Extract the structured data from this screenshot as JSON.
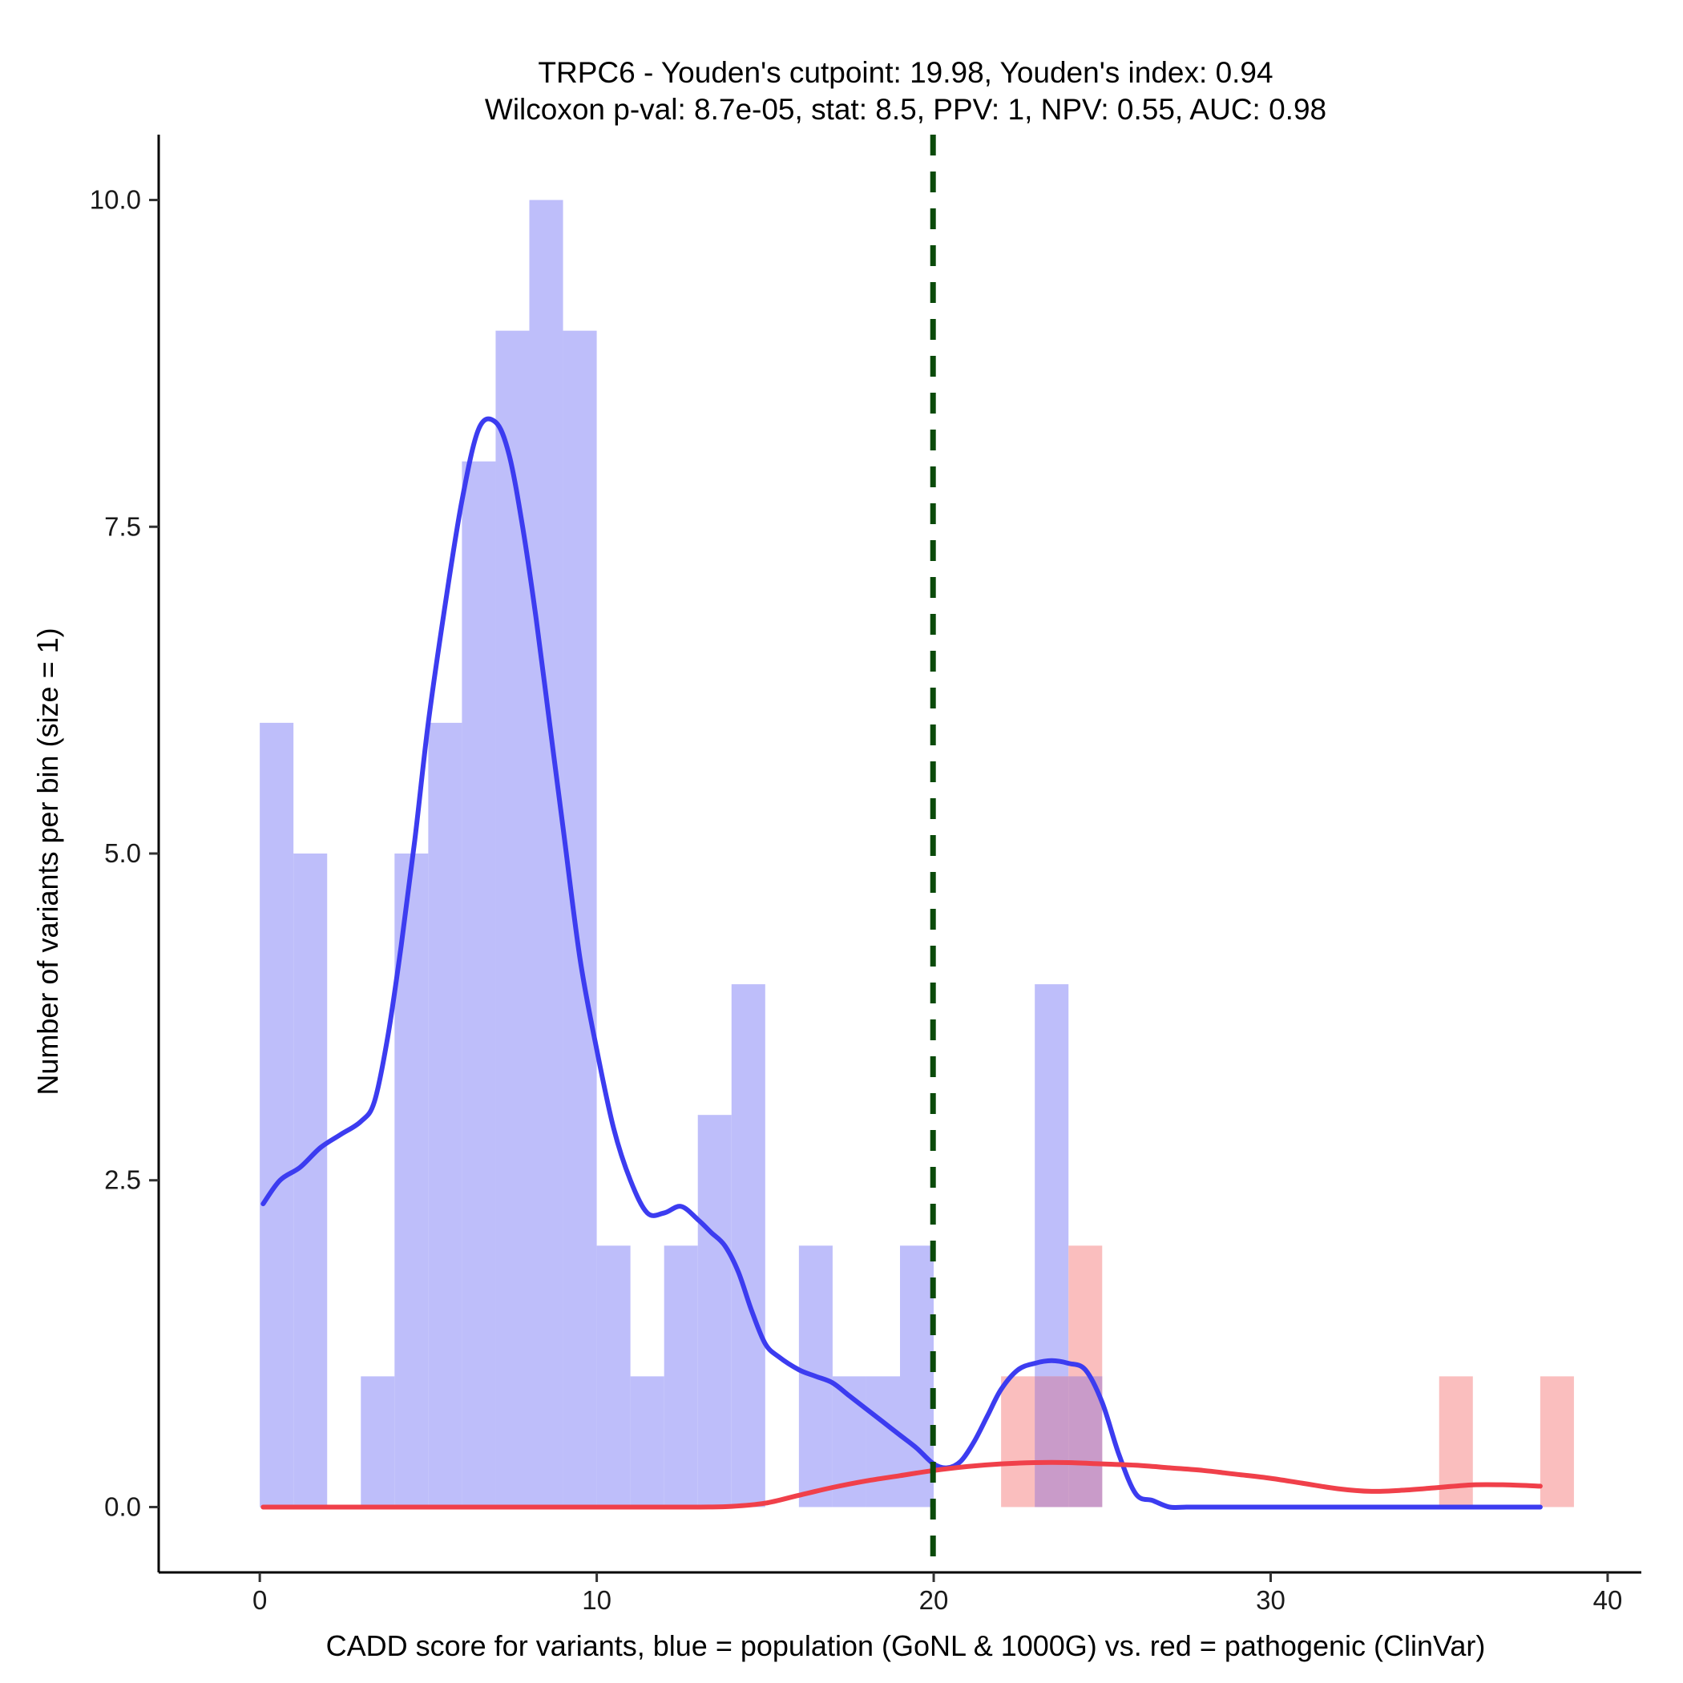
{
  "chart_data": {
    "type": "bar",
    "title": "TRPC6 - Youden's cutpoint: 19.98, Youden's index: 0.94",
    "subtitle": "Wilcoxon p-val: 8.7e-05, stat: 8.5, PPV: 1, NPV: 0.55, AUC: 0.98",
    "xlabel": "CADD score for variants, blue = population (GoNL & 1000G) vs. red = pathogenic (ClinVar)",
    "ylabel": "Number of variants per bin (size = 1)",
    "xlim": [
      -3,
      41
    ],
    "ylim": [
      -0.5,
      10.5
    ],
    "x_ticks": [
      0,
      10,
      20,
      30,
      40
    ],
    "x_tick_labels": [
      "0",
      "10",
      "20",
      "30",
      "40"
    ],
    "y_ticks": [
      0,
      2.5,
      5,
      7.5,
      10
    ],
    "y_tick_labels": [
      "0.0",
      "2.5",
      "5.0",
      "7.5",
      "10.0"
    ],
    "bin_size": 1,
    "cutpoint": 19.98,
    "grid": false,
    "colors": {
      "population_bar": "#bebefa",
      "pathogenic_bar": "#fabebe",
      "overlap_bar": "#c99bc9",
      "population_density": "#3c3cf0",
      "pathogenic_density": "#f0404a",
      "cutpoint_line": "#0a4a0a"
    },
    "series": [
      {
        "name": "population (GoNL & 1000G)",
        "kind": "histogram",
        "bins": [
          {
            "x0": 0,
            "count": 6
          },
          {
            "x0": 1,
            "count": 5
          },
          {
            "x0": 3,
            "count": 1
          },
          {
            "x0": 4,
            "count": 5
          },
          {
            "x0": 5,
            "count": 6
          },
          {
            "x0": 6,
            "count": 8
          },
          {
            "x0": 7,
            "count": 9
          },
          {
            "x0": 8,
            "count": 10
          },
          {
            "x0": 9,
            "count": 9
          },
          {
            "x0": 10,
            "count": 2
          },
          {
            "x0": 11,
            "count": 1
          },
          {
            "x0": 12,
            "count": 2
          },
          {
            "x0": 13,
            "count": 3
          },
          {
            "x0": 14,
            "count": 4
          },
          {
            "x0": 16,
            "count": 2
          },
          {
            "x0": 17,
            "count": 1
          },
          {
            "x0": 18,
            "count": 1
          },
          {
            "x0": 19,
            "count": 2
          },
          {
            "x0": 23,
            "count": 4
          },
          {
            "x0": 24,
            "count": 1
          }
        ]
      },
      {
        "name": "pathogenic (ClinVar)",
        "kind": "histogram",
        "bins": [
          {
            "x0": 22,
            "count": 1
          },
          {
            "x0": 23,
            "count": 1
          },
          {
            "x0": 24,
            "count": 2
          },
          {
            "x0": 35,
            "count": 1
          },
          {
            "x0": 38,
            "count": 1
          }
        ]
      },
      {
        "name": "population density",
        "kind": "line",
        "x": [
          0.1,
          0.6,
          1.2,
          1.8,
          2.4,
          3.0,
          3.4,
          3.8,
          4.2,
          4.6,
          5.0,
          5.5,
          6.0,
          6.5,
          7.0,
          7.4,
          7.8,
          8.2,
          8.6,
          9.0,
          9.5,
          10.0,
          10.5,
          11.0,
          11.5,
          12.0,
          12.5,
          13.0,
          13.4,
          13.8,
          14.2,
          14.6,
          15.0,
          15.4,
          16.0,
          16.5,
          17.0,
          17.5,
          18.0,
          18.5,
          19.0,
          19.5,
          20.0,
          20.4,
          20.8,
          21.2,
          21.6,
          22.0,
          22.5,
          23.0,
          23.5,
          24.0,
          24.5,
          25.0,
          25.5,
          26.0,
          26.5,
          27.0,
          27.5,
          28.0,
          30.0,
          34.0,
          38.0
        ],
        "y": [
          2.32,
          2.5,
          2.6,
          2.75,
          2.85,
          2.95,
          3.1,
          3.6,
          4.3,
          5.1,
          6.0,
          6.9,
          7.7,
          8.25,
          8.3,
          8.05,
          7.5,
          6.8,
          6.0,
          5.2,
          4.2,
          3.5,
          2.9,
          2.5,
          2.25,
          2.25,
          2.3,
          2.2,
          2.1,
          2.0,
          1.8,
          1.5,
          1.25,
          1.15,
          1.05,
          1.0,
          0.95,
          0.85,
          0.75,
          0.65,
          0.55,
          0.45,
          0.33,
          0.3,
          0.35,
          0.5,
          0.7,
          0.9,
          1.05,
          1.1,
          1.12,
          1.1,
          1.05,
          0.8,
          0.4,
          0.1,
          0.05,
          0.0,
          0.0,
          0.0,
          0.0,
          0.0,
          0.0
        ]
      },
      {
        "name": "pathogenic density",
        "kind": "line",
        "x": [
          0.1,
          5.0,
          10.0,
          13.0,
          14.0,
          15.0,
          16.0,
          17.0,
          18.0,
          19.0,
          20.0,
          21.0,
          22.0,
          23.0,
          24.0,
          25.0,
          26.0,
          27.0,
          28.0,
          29.0,
          30.0,
          31.0,
          32.0,
          33.0,
          34.0,
          35.0,
          36.0,
          37.0,
          38.0
        ],
        "y": [
          0.0,
          0.0,
          0.0,
          0.0,
          0.005,
          0.03,
          0.09,
          0.15,
          0.2,
          0.24,
          0.28,
          0.31,
          0.33,
          0.34,
          0.34,
          0.33,
          0.32,
          0.3,
          0.28,
          0.25,
          0.22,
          0.18,
          0.14,
          0.12,
          0.13,
          0.15,
          0.17,
          0.17,
          0.16
        ]
      }
    ]
  }
}
